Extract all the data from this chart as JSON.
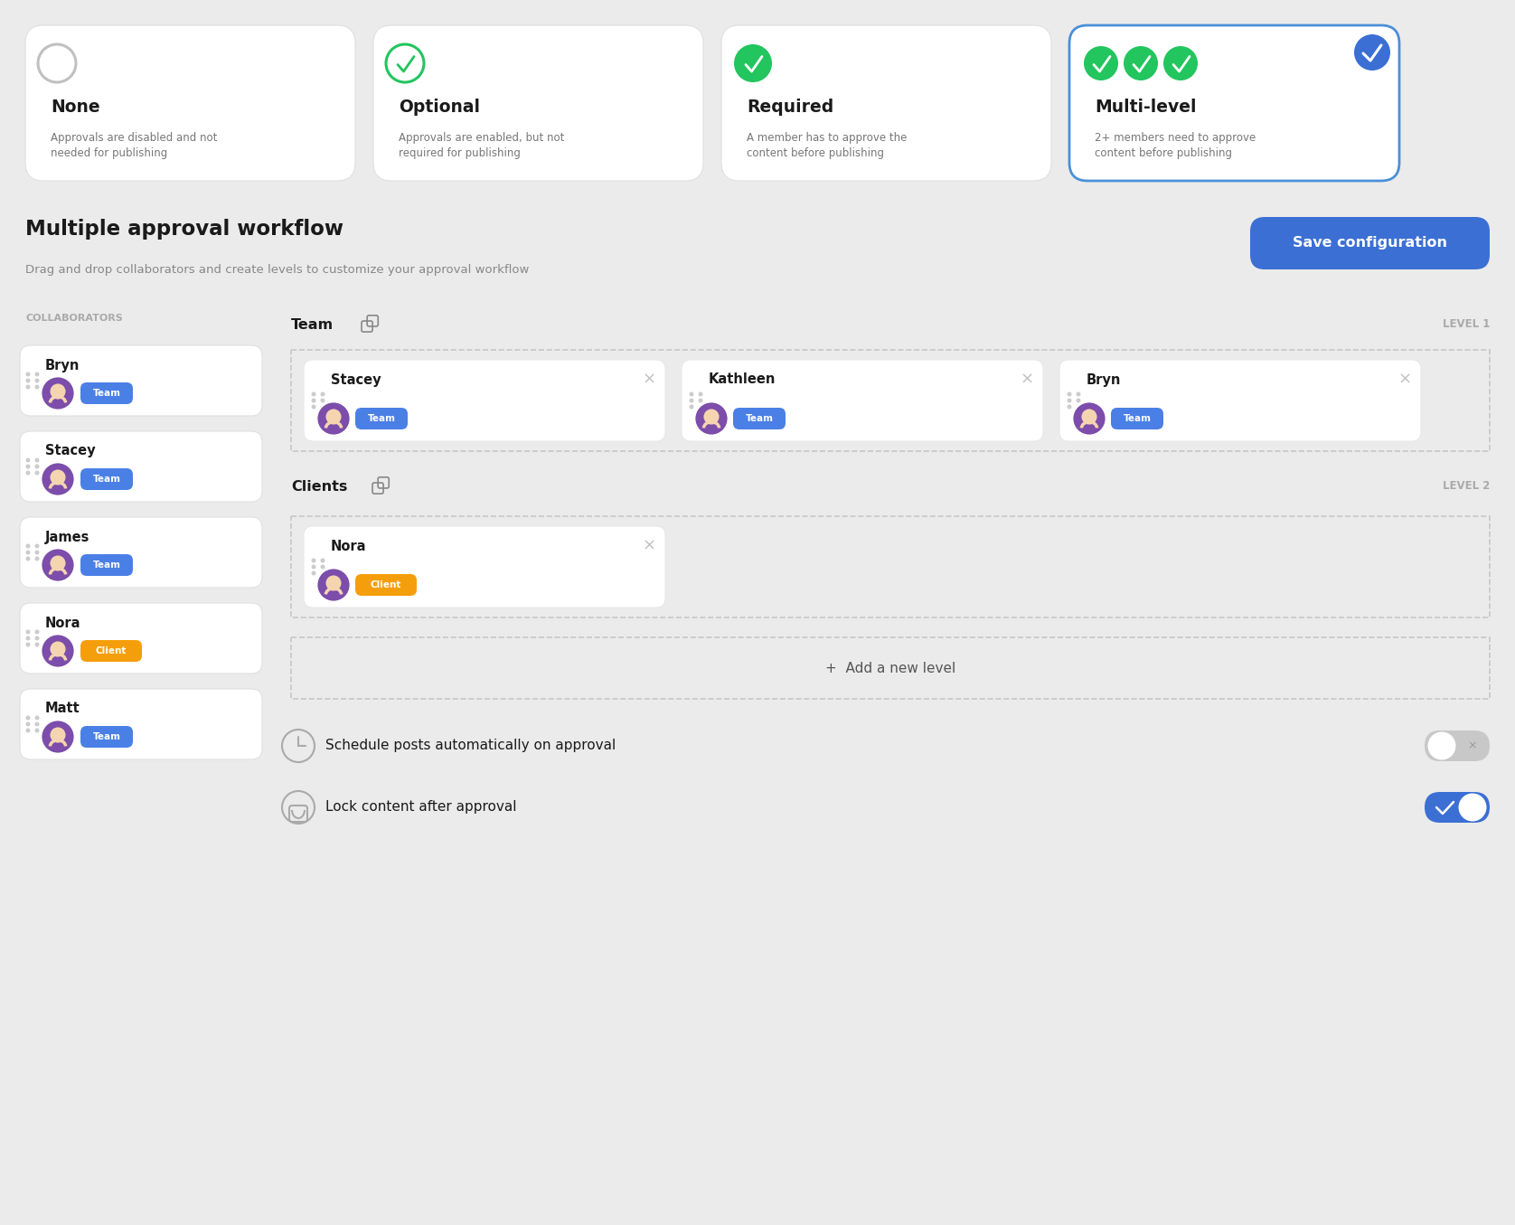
{
  "bg_color": "#ebebeb",
  "card_color": "#ffffff",
  "border_color": "#e0e0e0",
  "selected_border_color": "#4a90d9",
  "text_dark": "#1a1a1a",
  "text_gray": "#888888",
  "text_light_gray": "#aaaaaa",
  "green_filled": "#22c55e",
  "green_outline": "#22c55e",
  "blue_tag": "#4a7fe5",
  "orange_tag": "#f59e0b",
  "blue_button": "#3b6fd4",
  "blue_toggle": "#3b6fd4",
  "gray_toggle": "#c8c8c8",
  "dashed_border": "#bbbbbb",
  "approval_cards": [
    {
      "title": "None",
      "desc": "Approvals are disabled and not\nneeded for publishing",
      "icon": "circle_empty",
      "selected": false
    },
    {
      "title": "Optional",
      "desc": "Approvals are enabled, but not\nrequired for publishing",
      "icon": "circle_check_outline",
      "selected": false
    },
    {
      "title": "Required",
      "desc": "A member has to approve the\ncontent before publishing",
      "icon": "circle_check_filled",
      "selected": false
    },
    {
      "title": "Multi-level",
      "desc": "2+ members need to approve\ncontent before publishing",
      "icon": "multi_check",
      "selected": true
    }
  ],
  "workflow_title": "Multiple approval workflow",
  "workflow_subtitle": "Drag and drop collaborators and create levels to customize your approval workflow",
  "save_button_text": "Save configuration",
  "collaborators_label": "COLLABORATORS",
  "collaborators": [
    {
      "name": "Bryn",
      "tag": "Team",
      "tag_color": "#4a7fe5"
    },
    {
      "name": "Stacey",
      "tag": "Team",
      "tag_color": "#4a7fe5"
    },
    {
      "name": "James",
      "tag": "Team",
      "tag_color": "#4a7fe5"
    },
    {
      "name": "Nora",
      "tag": "Client",
      "tag_color": "#f59e0b"
    },
    {
      "name": "Matt",
      "tag": "Team",
      "tag_color": "#4a7fe5"
    }
  ],
  "levels": [
    {
      "label": "Team",
      "level_text": "LEVEL 1",
      "members": [
        {
          "name": "Stacey",
          "tag": "Team",
          "tag_color": "#4a7fe5"
        },
        {
          "name": "Kathleen",
          "tag": "Team",
          "tag_color": "#4a7fe5"
        },
        {
          "name": "Bryn",
          "tag": "Team",
          "tag_color": "#4a7fe5"
        }
      ]
    },
    {
      "label": "Clients",
      "level_text": "LEVEL 2",
      "members": [
        {
          "name": "Nora",
          "tag": "Client",
          "tag_color": "#f59e0b"
        }
      ]
    }
  ],
  "add_level_text": "+  Add a new level",
  "settings": [
    {
      "text": "Schedule posts automatically on approval",
      "toggle": false
    },
    {
      "text": "Lock content after approval",
      "toggle": true
    }
  ]
}
